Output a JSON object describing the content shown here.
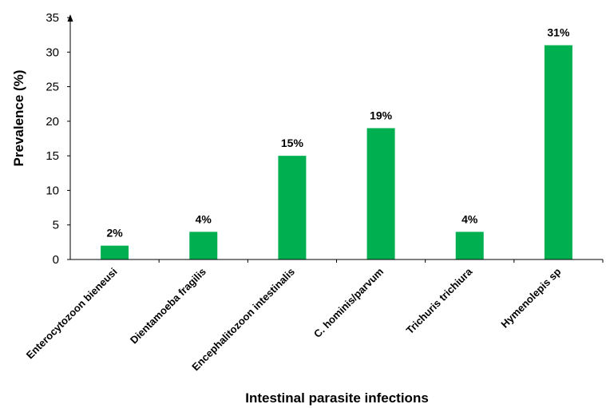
{
  "chart_data": {
    "type": "bar",
    "title": "",
    "xlabel": "Intestinal parasite infections",
    "ylabel": "Prevalence (%)",
    "ylim": [
      0,
      35
    ],
    "yticks": [
      0,
      5,
      10,
      15,
      20,
      25,
      30,
      35
    ],
    "grid": false,
    "categories": [
      "Enterocytozoon bieneusi",
      "Dientamoeba fragilis",
      "Encephalitozoon intestinalis",
      "C. hominis/parvum",
      "Trichuris trichiura",
      "Hymenolepis sp"
    ],
    "values": [
      2,
      4,
      15,
      19,
      4,
      31
    ],
    "data_labels": [
      "2%",
      "4%",
      "15%",
      "19%",
      "4%",
      "31%"
    ],
    "bar_color": "#00b050"
  }
}
